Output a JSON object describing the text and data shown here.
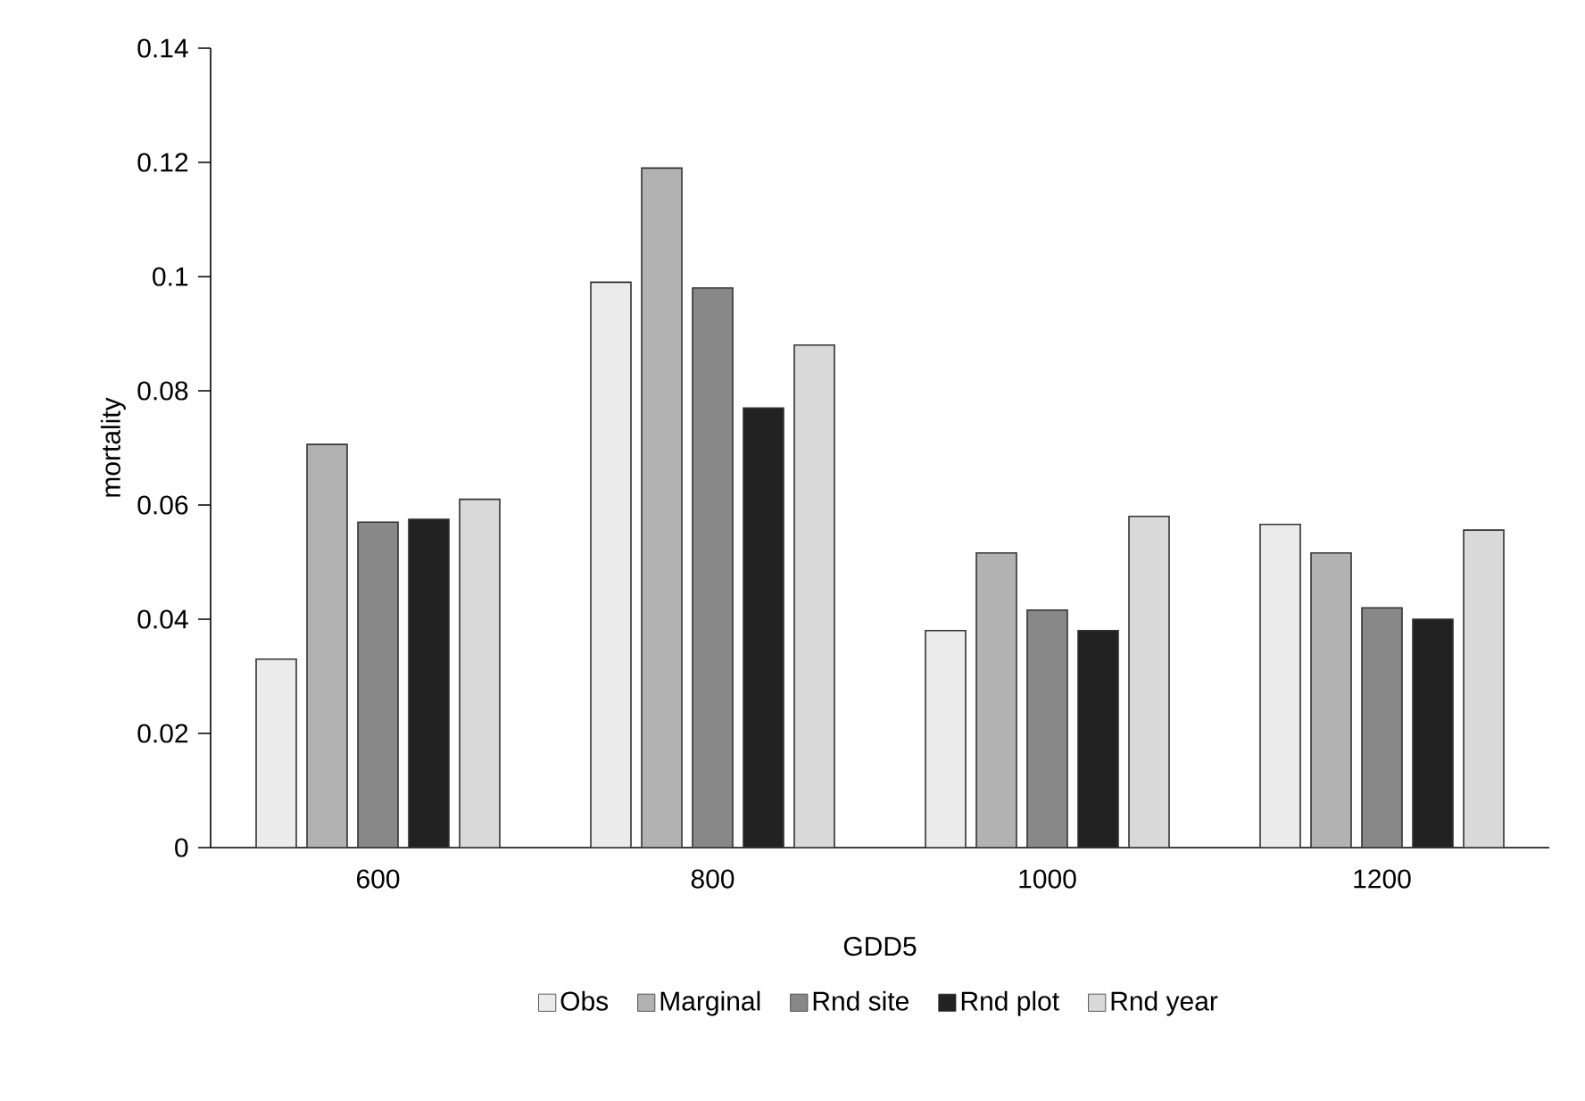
{
  "chart_data": {
    "type": "bar",
    "xlabel": "GDD5",
    "ylabel": "mortality",
    "categories": [
      "600",
      "800",
      "1000",
      "1200"
    ],
    "ylim": [
      0,
      0.14
    ],
    "yticks": [
      0,
      0.02,
      0.04,
      0.06,
      0.08,
      0.1,
      0.12,
      0.14
    ],
    "legend": "bottom",
    "grid": false,
    "series": [
      {
        "name": "Obs",
        "color": "#ebebeb",
        "values": [
          0.033,
          0.099,
          0.038,
          0.0566
        ]
      },
      {
        "name": "Marginal",
        "color": "#b2b2b2",
        "values": [
          0.0706,
          0.119,
          0.0516,
          0.0516
        ]
      },
      {
        "name": "Rnd site",
        "color": "#888888",
        "values": [
          0.057,
          0.098,
          0.0416,
          0.042
        ]
      },
      {
        "name": "Rnd plot",
        "color": "#222222",
        "values": [
          0.0575,
          0.077,
          0.038,
          0.04
        ]
      },
      {
        "name": "Rnd year",
        "color": "#d9d9d9",
        "values": [
          0.061,
          0.088,
          0.058,
          0.0556
        ]
      }
    ]
  }
}
